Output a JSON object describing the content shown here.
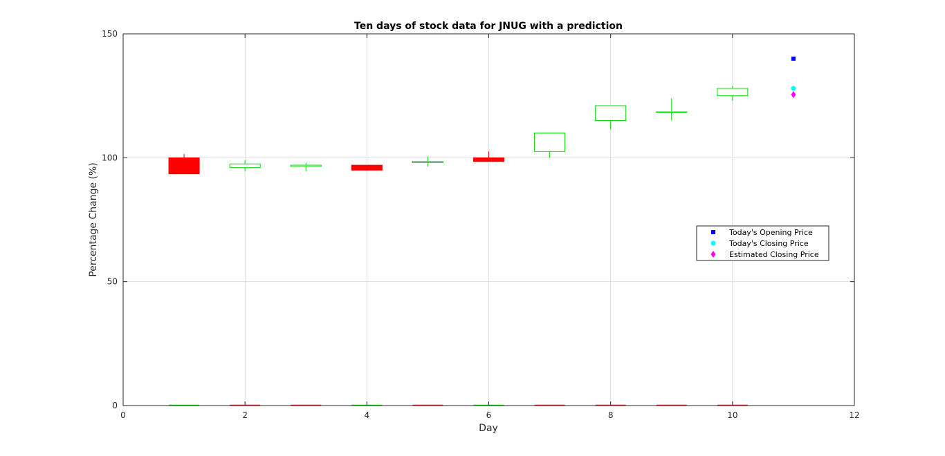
{
  "chart_data": {
    "type": "candlestick",
    "title": "Ten days of stock data for JNUG with a prediction",
    "xlabel": "Day",
    "ylabel": "Percentage Change (%)",
    "xlim": [
      0,
      12
    ],
    "ylim": [
      0,
      150
    ],
    "xticks": [
      0,
      2,
      4,
      6,
      8,
      10,
      12
    ],
    "yticks": [
      0,
      50,
      100,
      150
    ],
    "grid": true,
    "up_color": "#00dd00",
    "down_color": "#ff0000",
    "candles": [
      {
        "day": 1,
        "open": 100.0,
        "close": 93.5,
        "high": 101.5,
        "low": 93.5
      },
      {
        "day": 2,
        "open": 96.0,
        "close": 97.5,
        "high": 99.0,
        "low": 94.5
      },
      {
        "day": 3,
        "open": 96.5,
        "close": 97.0,
        "high": 98.0,
        "low": 94.5
      },
      {
        "day": 4,
        "open": 97.0,
        "close": 95.0,
        "high": 97.0,
        "low": 95.0
      },
      {
        "day": 5,
        "open": 98.0,
        "close": 98.5,
        "high": 100.5,
        "low": 96.5
      },
      {
        "day": 6,
        "open": 100.0,
        "close": 98.5,
        "high": 102.5,
        "low": 98.5
      },
      {
        "day": 7,
        "open": 102.5,
        "close": 110.0,
        "high": 110.0,
        "low": 100.0
      },
      {
        "day": 8,
        "open": 115.0,
        "close": 121.0,
        "high": 121.0,
        "low": 111.5
      },
      {
        "day": 9,
        "open": 118.5,
        "close": 118.5,
        "high": 124.0,
        "low": 115.0
      },
      {
        "day": 10,
        "open": 125.0,
        "close": 128.0,
        "high": 129.0,
        "low": 123.0
      }
    ],
    "volume_marks": [
      {
        "day": 1,
        "color": "#00dd00"
      },
      {
        "day": 2,
        "color": "#ff0000"
      },
      {
        "day": 3,
        "color": "#ff0000"
      },
      {
        "day": 4,
        "color": "#00dd00"
      },
      {
        "day": 5,
        "color": "#ff0000"
      },
      {
        "day": 6,
        "color": "#00dd00"
      },
      {
        "day": 7,
        "color": "#ff0000"
      },
      {
        "day": 8,
        "color": "#ff0000"
      },
      {
        "day": 9,
        "color": "#ff0000"
      },
      {
        "day": 10,
        "color": "#ff0000"
      }
    ],
    "prediction_points": [
      {
        "name": "Today's Opening Price",
        "day": 11,
        "value": 140.0,
        "marker": "square",
        "color": "#0000ff"
      },
      {
        "name": "Today's Closing Price",
        "day": 11,
        "value": 128.0,
        "marker": "circle",
        "color": "#00ffff"
      },
      {
        "name": "Estimated Closing Price",
        "day": 11,
        "value": 125.5,
        "marker": "diamond",
        "color": "#ff00ff"
      }
    ],
    "legend_position": "right"
  }
}
